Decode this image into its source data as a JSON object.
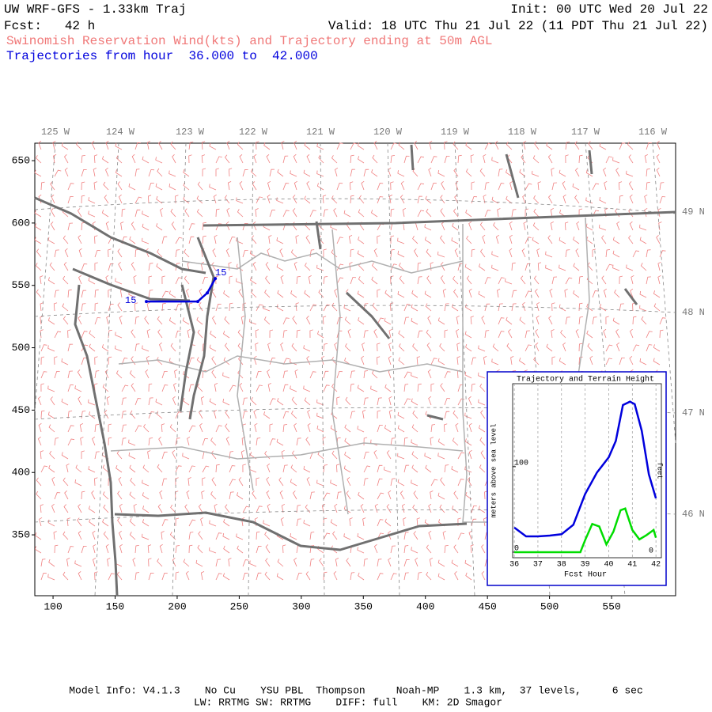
{
  "header": {
    "title": "UW WRF-GFS - 1.33km Traj",
    "init": "Init: 00 UTC Wed 20 Jul 22",
    "forecast": "Fcst:   42 h",
    "valid": "Valid: 18 UTC Thu 21 Jul 22 (11 PDT Thu 21 Jul 22)",
    "subtitle": "Swinomish Reservation Wind(kts) and Trajectory ending at 50m AGL",
    "trajectory_range": "Trajectories from hour  36.000 to  42.000"
  },
  "map": {
    "xlim": [
      85.3,
      601.6
    ],
    "ylim": [
      301.2,
      664
    ],
    "xticks": [
      100,
      150,
      200,
      250,
      300,
      350,
      400,
      450,
      500,
      550
    ],
    "yticks": [
      350,
      400,
      450,
      500,
      550,
      600,
      650
    ],
    "longitude_labels": [
      "125 W",
      "124 W",
      "123 W",
      "122 W",
      "121 W",
      "120 W",
      "119 W",
      "118 W",
      "117 W",
      "116 W"
    ],
    "latitude_labels": [
      "49 N",
      "48 N",
      "47 N",
      "46 N"
    ],
    "trajectory": {
      "color": "#0000dd",
      "x": [
        175.2,
        216.6,
        224.3,
        230.7
      ],
      "y": [
        537.1,
        537.1,
        544,
        555.5
      ],
      "start_label": "15",
      "end_label": "15"
    }
  },
  "inset": {
    "title": "Trajectory and Terrain Height",
    "ylabel": "meters above sea level",
    "xlabel": "Fcst Hour",
    "y2label": "feet",
    "xlim": [
      35.93,
      42.23
    ],
    "ylim": [
      -6.5,
      197
    ],
    "xticks": [
      36,
      37,
      38,
      39,
      40,
      41,
      42
    ],
    "yticks": [
      0,
      100
    ],
    "y2ticks": [
      "0"
    ],
    "series": [
      {
        "color": "#0000dd",
        "x": [
          36,
          36.5,
          37,
          37.5,
          38,
          38.5,
          39,
          39.5,
          40,
          40.3,
          40.6,
          40.9,
          41.1,
          41.4,
          41.7,
          42
        ],
        "values": [
          28.7,
          18.5,
          18.5,
          19.4,
          21,
          32,
          68,
          93,
          111,
          130,
          172,
          176,
          173,
          142,
          91,
          63
        ]
      },
      {
        "color": "#00dd00",
        "x": [
          36,
          38.8,
          39,
          39.3,
          39.6,
          39.9,
          40.2,
          40.5,
          40.7,
          41,
          41.3,
          41.6,
          41.9,
          42
        ],
        "values": [
          0,
          0,
          14,
          33,
          30,
          9,
          24,
          49,
          51,
          26,
          15,
          20,
          26,
          17
        ]
      }
    ]
  },
  "footer": {
    "line1": "Model Info: V4.1.3    No Cu    YSU PBL  Thompson     Noah-MP    1.3 km,  37 levels,     6 sec",
    "line2": "LW: RRTMG SW: RRTMG    DIFF: full    KM: 2D Smagor"
  }
}
